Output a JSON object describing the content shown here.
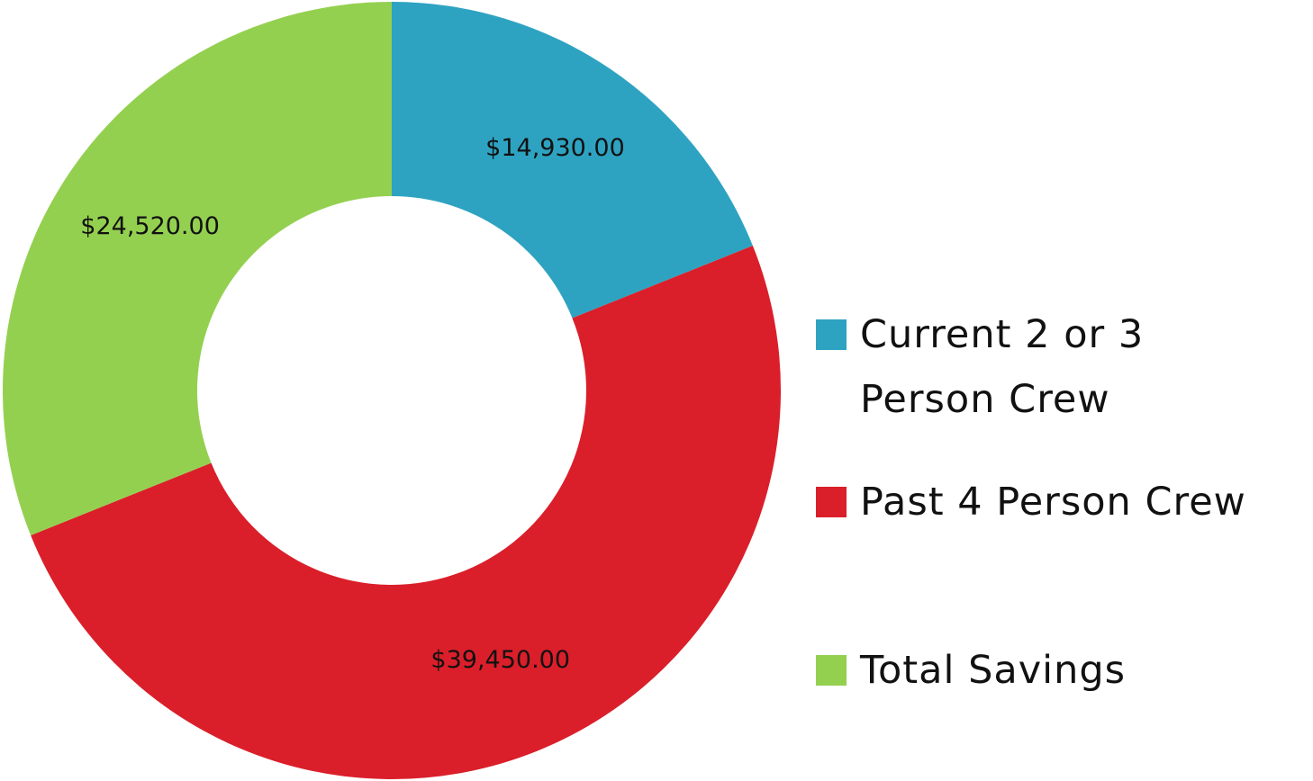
{
  "chart_data": {
    "type": "donut",
    "categories": [
      "Current 2 or 3 Person Crew",
      "Past 4 Person Crew",
      "Total Savings"
    ],
    "values": [
      14930,
      39450,
      24520
    ],
    "value_labels": [
      "$14,930.00",
      "$39,450.00",
      "$24,520.00"
    ],
    "colors": [
      "#2ea3c1",
      "#da1f2a",
      "#94d050"
    ],
    "legend": "right"
  }
}
